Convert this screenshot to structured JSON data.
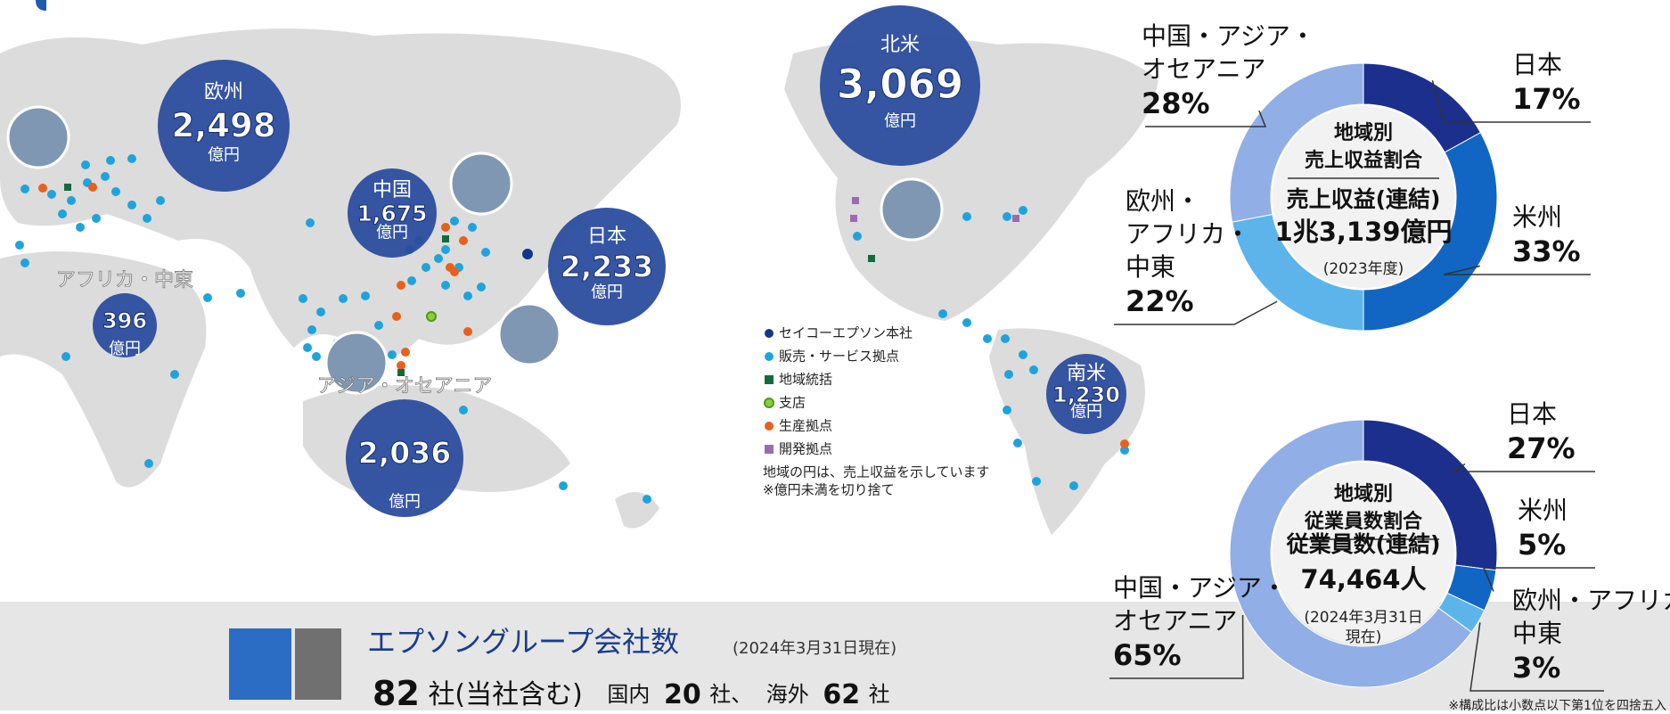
{
  "chart_data": [
    {
      "type": "donut",
      "title": "地域別\n売上収益割合",
      "total_label": "売上収益(連結)",
      "total": "1兆3,139億円",
      "note": "(2023年度)",
      "categories": [
        "日本",
        "米州",
        "欧州・\nアフリカ・\n中東",
        "中国・アジア・\nオセアニア"
      ],
      "values": [
        17,
        33,
        22,
        28
      ],
      "value_labels": [
        "17%",
        "33%",
        "22%",
        "28%"
      ],
      "colors": [
        "#1c2f8c",
        "#1166c4",
        "#5cb4ea",
        "#91aee6"
      ]
    },
    {
      "type": "donut",
      "title": "地域別\n従業員数割合",
      "total_label": "従業員数(連結)",
      "total": "74,464人",
      "note": "(2024年3月31日\n現在)",
      "categories": [
        "日本",
        "米州",
        "欧州・アフリカ・\n中東",
        "中国・アジア・\nオセアニア"
      ],
      "values": [
        27,
        5,
        3,
        65
      ],
      "value_labels": [
        "27%",
        "5%",
        "3%",
        "65%"
      ],
      "colors": [
        "#1c2f8c",
        "#1166c4",
        "#5cb4ea",
        "#91aee6"
      ],
      "footnote": "※構成比は小数点以下第1位を四捨五入"
    }
  ],
  "map": {
    "regions": [
      {
        "name": "欧州",
        "value": "2,498",
        "unit": "億円"
      },
      {
        "name": "北米",
        "value": "3,069",
        "unit": "億円"
      },
      {
        "name": "中国",
        "value": "1,675",
        "unit": "億円"
      },
      {
        "name": "日本",
        "value": "2,233",
        "unit": "億円"
      },
      {
        "name": "アフリカ・中東",
        "value": "396",
        "unit": "億円"
      },
      {
        "name": "アジア・オセアニア",
        "value": "2,036",
        "unit": "億円"
      },
      {
        "name": "南米",
        "value": "1,230",
        "unit": "億円"
      }
    ],
    "legend": [
      "セイコーエプソン本社",
      "販売・サービス拠点",
      "地域統括",
      "支店",
      "生産拠点",
      "開発拠点"
    ],
    "notes": [
      "地域の円は、売上収益を示しています",
      "※億円未満を切り捨て"
    ]
  },
  "company": {
    "title": "エプソングループ会社数",
    "date": "(2024年3月31日現在)",
    "total": "82",
    "total_unit": "社(当社含む)",
    "domestic_label": "国内",
    "domestic": "20",
    "domestic_unit": "社、",
    "overseas_label": "海外",
    "overseas": "62",
    "overseas_unit": "社"
  }
}
